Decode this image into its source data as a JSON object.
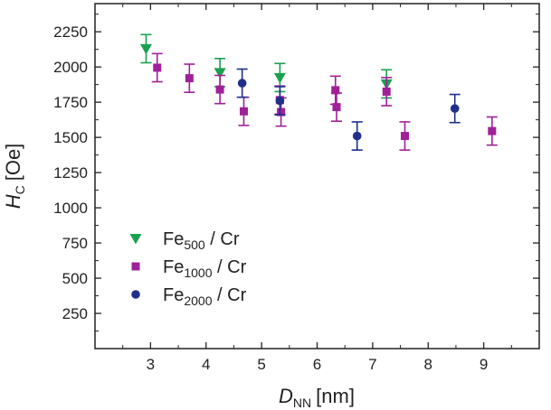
{
  "chart_data": {
    "type": "scatter",
    "title": "",
    "xlabel": {
      "main": "D",
      "sub": "NN",
      "unit": "[nm]"
    },
    "ylabel": {
      "main": "H",
      "sub": "C",
      "unit": "[Oe]"
    },
    "xlim": [
      2.0,
      10.0
    ],
    "ylim": [
      0,
      2450
    ],
    "xticks": [
      3,
      4,
      5,
      6,
      7,
      8,
      9
    ],
    "yticks": [
      250,
      500,
      750,
      1000,
      1250,
      1500,
      1750,
      2000,
      2250
    ],
    "grid": false,
    "legend_position": "center-left",
    "series": [
      {
        "name": "Fe500 / Cr",
        "label_main": "Fe",
        "label_sub": "500",
        "label_tail": "  / Cr",
        "color": "#1aa14f",
        "marker": "triangle-down",
        "points": [
          {
            "x": 2.92,
            "y": 2130,
            "err": 100
          },
          {
            "x": 4.25,
            "y": 1960,
            "err": 100
          },
          {
            "x": 5.33,
            "y": 1925,
            "err": 100
          },
          {
            "x": 7.25,
            "y": 1880,
            "err": 100
          }
        ]
      },
      {
        "name": "Fe1000 / Cr",
        "label_main": "Fe",
        "label_sub": "1000",
        "label_tail": " / Cr",
        "color": "#a0209a",
        "marker": "square",
        "points": [
          {
            "x": 3.12,
            "y": 1995,
            "err": 100
          },
          {
            "x": 3.7,
            "y": 1920,
            "err": 100
          },
          {
            "x": 4.25,
            "y": 1840,
            "err": 100
          },
          {
            "x": 4.68,
            "y": 1685,
            "err": 100
          },
          {
            "x": 5.33,
            "y": 1765,
            "err": 100
          },
          {
            "x": 5.35,
            "y": 1680,
            "err": 100
          },
          {
            "x": 6.33,
            "y": 1835,
            "err": 100
          },
          {
            "x": 6.35,
            "y": 1715,
            "err": 100
          },
          {
            "x": 7.25,
            "y": 1825,
            "err": 100
          },
          {
            "x": 7.58,
            "y": 1510,
            "err": 100
          },
          {
            "x": 9.15,
            "y": 1545,
            "err": 100
          }
        ]
      },
      {
        "name": "Fe2000 / Cr",
        "label_main": "Fe",
        "label_sub": "2000",
        "label_tail": " / Cr",
        "color": "#1f2f8a",
        "marker": "circle",
        "points": [
          {
            "x": 4.65,
            "y": 1885,
            "err": 100
          },
          {
            "x": 5.33,
            "y": 1760,
            "err": 100
          },
          {
            "x": 6.72,
            "y": 1510,
            "err": 100
          },
          {
            "x": 8.48,
            "y": 1705,
            "err": 100
          }
        ]
      }
    ]
  }
}
